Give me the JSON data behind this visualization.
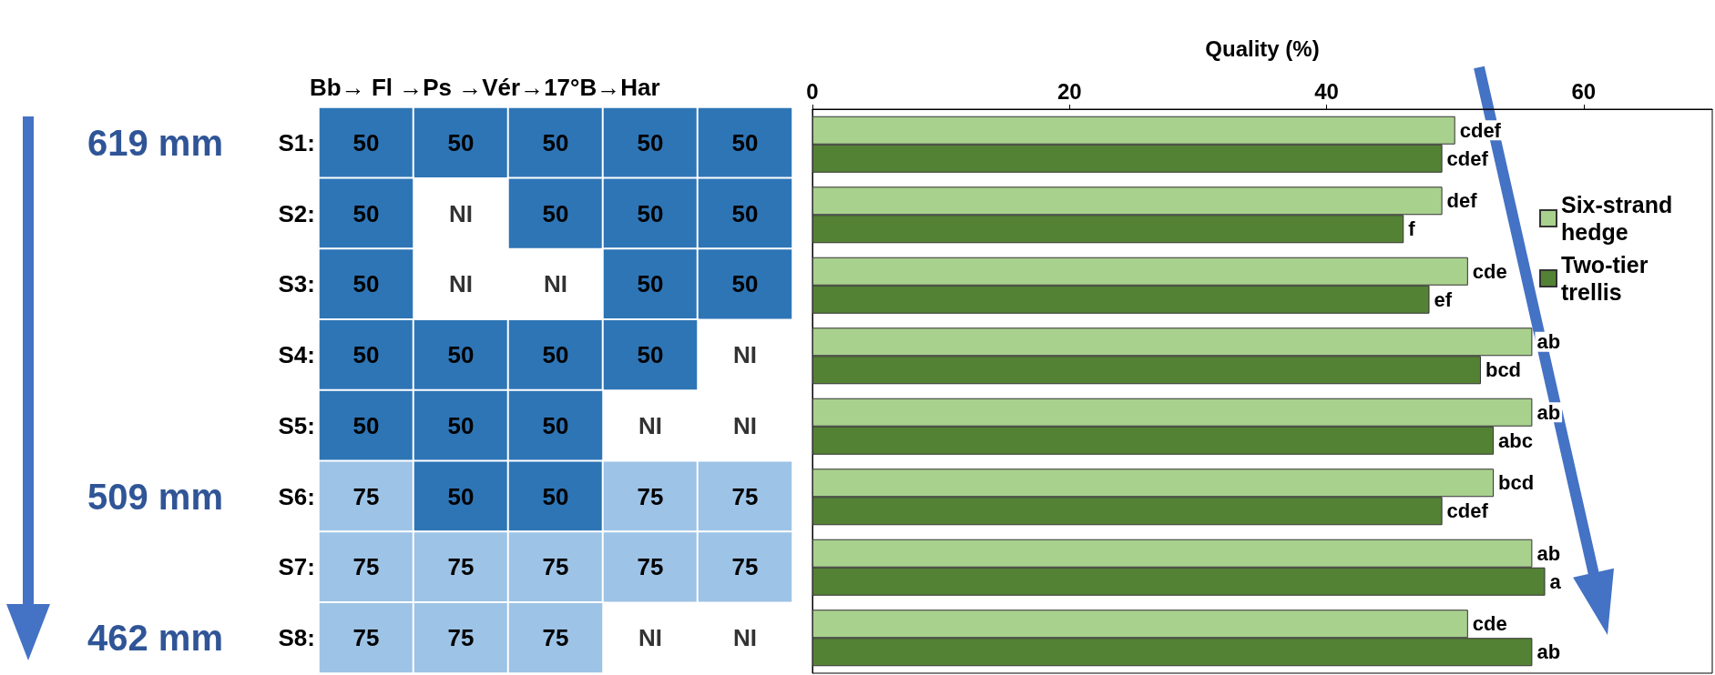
{
  "chart_data": [
    {
      "type": "heatmap",
      "title": "Bb→ Fl →Ps →Vér→17°B→Har",
      "categories": [
        null,
        null,
        null,
        null,
        null
      ],
      "y_categories": [
        "S1:",
        "S2:",
        "S3:",
        "S4:",
        "S5:",
        "S6:",
        "S7:",
        "S8:"
      ],
      "cells": [
        [
          50,
          50,
          50,
          50,
          50
        ],
        [
          50,
          null,
          50,
          50,
          50
        ],
        [
          50,
          null,
          null,
          50,
          50
        ],
        [
          50,
          50,
          50,
          50,
          null
        ],
        [
          50,
          50,
          50,
          null,
          null
        ],
        [
          75,
          50,
          50,
          75,
          75
        ],
        [
          75,
          75,
          75,
          75,
          75
        ],
        [
          75,
          75,
          75,
          null,
          null
        ]
      ],
      "cell_labels": [
        [
          "50",
          "50",
          "50",
          "50",
          "50"
        ],
        [
          "50",
          "NI",
          "50",
          "50",
          "50"
        ],
        [
          "50",
          "NI",
          "NI",
          "50",
          "50"
        ],
        [
          "50",
          "50",
          "50",
          "50",
          "NI"
        ],
        [
          "50",
          "50",
          "50",
          "NI",
          "NI"
        ],
        [
          "75",
          "50",
          "50",
          "75",
          "75"
        ],
        [
          "75",
          "75",
          "75",
          "75",
          "75"
        ],
        [
          "75",
          "75",
          "75",
          "NI",
          "NI"
        ]
      ],
      "data_labels": true,
      "annotations": [
        "619 mm",
        "509 mm",
        "462 mm"
      ]
    },
    {
      "type": "bar",
      "orientation": "horizontal",
      "xlabel": "Quality (%)",
      "categories": [
        null,
        null,
        null,
        null,
        null,
        null,
        null,
        null
      ],
      "xlim": [
        0,
        70
      ],
      "xticks": [
        0,
        20,
        40,
        60
      ],
      "grid": false,
      "legend": "right",
      "series": [
        {
          "name": "Six-strand hedge",
          "color": "#a9d18e",
          "values": [
            50,
            49,
            51,
            56,
            56,
            53,
            56,
            51
          ],
          "value_labels": [
            "cdef",
            "def",
            "cde",
            "ab",
            "ab",
            "bcd",
            "ab",
            "cde"
          ]
        },
        {
          "name": "Two-tier trellis",
          "color": "#548235",
          "values": [
            49,
            46,
            48,
            52,
            53,
            49,
            57,
            56
          ],
          "value_labels": [
            "cdef",
            "f",
            "ef",
            "bcd",
            "abc",
            "cdef",
            "a",
            "ab"
          ]
        }
      ]
    }
  ]
}
